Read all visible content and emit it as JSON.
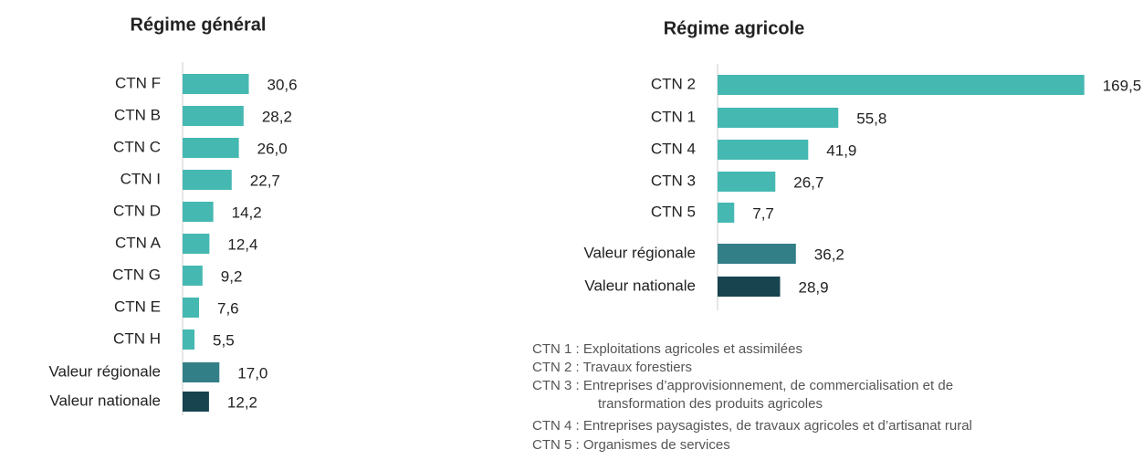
{
  "chart_data": [
    {
      "type": "barh",
      "title": "Régime général",
      "categories": [
        "CTN F",
        "CTN B",
        "CTN C",
        "CTN I",
        "CTN D",
        "CTN A",
        "CTN G",
        "CTN E",
        "CTN H",
        "Valeur régionale",
        "Valeur nationale"
      ],
      "values": [
        30.6,
        28.2,
        26.0,
        22.7,
        14.2,
        12.4,
        9.2,
        7.6,
        5.5,
        17.0,
        12.2
      ],
      "value_labels": [
        "30,6",
        "28,2",
        "26,0",
        "22,7",
        "14,2",
        "12,4",
        "9,2",
        "7,6",
        "5,5",
        "17,0",
        "12,2"
      ],
      "colors": [
        "#45b8b1",
        "#45b8b1",
        "#45b8b1",
        "#45b8b1",
        "#45b8b1",
        "#45b8b1",
        "#45b8b1",
        "#45b8b1",
        "#45b8b1",
        "#337f87",
        "#17444f"
      ]
    },
    {
      "type": "barh",
      "title": "Régime agricole",
      "categories": [
        "CTN 2",
        "CTN 1",
        "CTN 4",
        "CTN 3",
        "CTN 5",
        "Valeur régionale",
        "Valeur nationale"
      ],
      "values": [
        169.5,
        55.8,
        41.9,
        26.7,
        7.7,
        36.2,
        28.9
      ],
      "value_labels": [
        "169,5",
        "55,8",
        "41,9",
        "26,7",
        "7,7",
        "36,2",
        "28,9"
      ],
      "colors": [
        "#45b8b1",
        "#45b8b1",
        "#45b8b1",
        "#45b8b1",
        "#45b8b1",
        "#337f87",
        "#17444f"
      ],
      "notes": [
        "CTN 1 : Exploitations agricoles et assimilées",
        "CTN 2 : Travaux forestiers",
        "CTN 3 : Entreprises d’approvisionnement, de commercialisation et de",
        "transformation des produits agricoles",
        "CTN 4 : Entreprises paysagistes, de travaux agricoles et d’artisanat rural",
        "CTN 5 : Organismes de services"
      ]
    }
  ]
}
